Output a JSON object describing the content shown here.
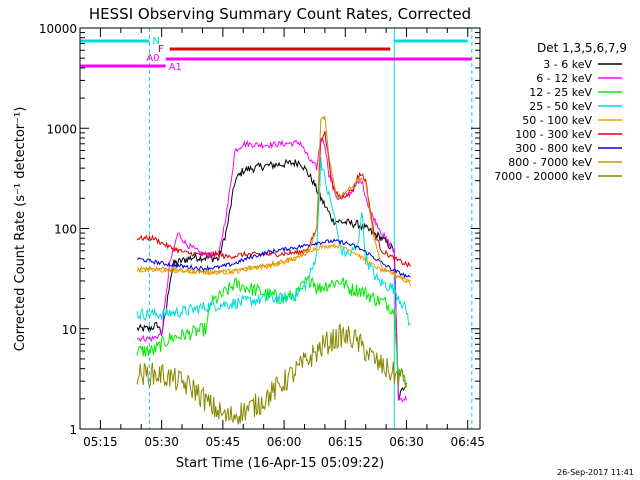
{
  "chart_data": {
    "type": "line",
    "title": "HESSI Observing Summary Count Rates, Corrected",
    "xlabel": "Start Time (16-Apr-15 05:09:22)",
    "ylabel": "Corrected Count Rate (s⁻¹ detector⁻¹)",
    "yscale": "log",
    "ylim": [
      1,
      10000
    ],
    "xlim": [
      "05:10",
      "06:48"
    ],
    "x_ticks": [
      "05:15",
      "05:30",
      "05:45",
      "06:00",
      "06:15",
      "06:30",
      "06:45"
    ],
    "y_ticks": [
      "1",
      "10",
      "100",
      "1000",
      "10000"
    ],
    "legend_title": "Det 1,3,5,6,7,9",
    "legend_position": "right",
    "timestamp": "26-Sep-2017 11:41",
    "bars": [
      {
        "label": "N",
        "color": "#00dddd",
        "segments": [
          [
            "05:10",
            "05:27"
          ],
          [
            "06:27",
            "06:45"
          ]
        ]
      },
      {
        "label": "F",
        "color": "#dd0000",
        "segments": [
          [
            "05:32",
            "06:26"
          ]
        ]
      },
      {
        "label": "A0",
        "color": "#ff00ff",
        "segments": [
          [
            "05:31",
            "06:46"
          ]
        ]
      },
      {
        "label": "A1",
        "color": "#ff00ff",
        "segments": [
          [
            "05:10",
            "05:31"
          ]
        ]
      }
    ],
    "vertical_lines": [
      {
        "time": "05:10",
        "style": "solid",
        "color": "#00dddd"
      },
      {
        "time": "05:27",
        "style": "dashed",
        "color": "#00dddd"
      },
      {
        "time": "06:27",
        "style": "solid",
        "color": "#00dddd"
      },
      {
        "time": "06:46",
        "style": "dashed",
        "color": "#00dddd"
      }
    ],
    "series": [
      {
        "name": "3 - 6 keV",
        "color": "#000000",
        "noise": 0.04,
        "points": [
          [
            "05:24",
            10
          ],
          [
            "05:27",
            10
          ],
          [
            "05:29",
            11
          ],
          [
            "05:30",
            9
          ],
          [
            "05:31",
            14
          ],
          [
            "05:32",
            30
          ],
          [
            "05:33",
            45
          ],
          [
            "05:38",
            52
          ],
          [
            "05:44",
            50
          ],
          [
            "05:46",
            100
          ],
          [
            "05:48",
            300
          ],
          [
            "05:50",
            380
          ],
          [
            "05:55",
            420
          ],
          [
            "06:00",
            440
          ],
          [
            "06:04",
            460
          ],
          [
            "06:07",
            300
          ],
          [
            "06:09",
            200
          ],
          [
            "06:10",
            170
          ],
          [
            "06:12",
            120
          ],
          [
            "06:15",
            115
          ],
          [
            "06:18",
            110
          ],
          [
            "06:20",
            100
          ],
          [
            "06:24",
            80
          ],
          [
            "06:27",
            60
          ],
          [
            "06:28",
            2
          ],
          [
            "06:30",
            3
          ]
        ]
      },
      {
        "name": "6 - 12 keV",
        "color": "#ff00ff",
        "noise": 0.03,
        "points": [
          [
            "05:24",
            8
          ],
          [
            "05:28",
            8
          ],
          [
            "05:30",
            9
          ],
          [
            "05:31",
            20
          ],
          [
            "05:32",
            45
          ],
          [
            "05:34",
            90
          ],
          [
            "05:36",
            70
          ],
          [
            "05:40",
            55
          ],
          [
            "05:44",
            55
          ],
          [
            "05:46",
            150
          ],
          [
            "05:48",
            600
          ],
          [
            "05:50",
            700
          ],
          [
            "05:55",
            680
          ],
          [
            "06:00",
            700
          ],
          [
            "06:04",
            720
          ],
          [
            "06:06",
            500
          ],
          [
            "06:08",
            400
          ],
          [
            "06:09",
            800
          ],
          [
            "06:10",
            700
          ],
          [
            "06:11",
            350
          ],
          [
            "06:13",
            200
          ],
          [
            "06:16",
            220
          ],
          [
            "06:18",
            280
          ],
          [
            "06:19",
            300
          ],
          [
            "06:21",
            150
          ],
          [
            "06:24",
            90
          ],
          [
            "06:27",
            60
          ],
          [
            "06:28",
            2
          ],
          [
            "06:30",
            2
          ]
        ]
      },
      {
        "name": "12 - 25 keV",
        "color": "#00ee00",
        "noise": 0.07,
        "points": [
          [
            "05:24",
            6
          ],
          [
            "05:28",
            6
          ],
          [
            "05:30",
            7
          ],
          [
            "05:32",
            8
          ],
          [
            "05:37",
            9
          ],
          [
            "05:41",
            10
          ],
          [
            "05:42",
            18
          ],
          [
            "05:45",
            22
          ],
          [
            "05:48",
            28
          ],
          [
            "05:52",
            25
          ],
          [
            "05:56",
            22
          ],
          [
            "06:00",
            20
          ],
          [
            "06:03",
            22
          ],
          [
            "06:05",
            28
          ],
          [
            "06:07",
            32
          ],
          [
            "06:08",
            25
          ],
          [
            "06:11",
            28
          ],
          [
            "06:14",
            30
          ],
          [
            "06:16",
            25
          ],
          [
            "06:19",
            24
          ],
          [
            "06:22",
            20
          ],
          [
            "06:25",
            18
          ],
          [
            "06:27",
            15
          ],
          [
            "06:28",
            4
          ],
          [
            "06:30",
            3
          ]
        ]
      },
      {
        "name": "25 - 50 keV",
        "color": "#00dddd",
        "noise": 0.06,
        "points": [
          [
            "05:24",
            14
          ],
          [
            "05:30",
            14
          ],
          [
            "05:36",
            15
          ],
          [
            "05:42",
            17
          ],
          [
            "05:48",
            18
          ],
          [
            "05:52",
            19
          ],
          [
            "05:56",
            20
          ],
          [
            "06:00",
            20
          ],
          [
            "06:03",
            22
          ],
          [
            "06:05",
            26
          ],
          [
            "06:07",
            40
          ],
          [
            "06:08",
            60
          ],
          [
            "06:09",
            500
          ],
          [
            "06:10",
            300
          ],
          [
            "06:12",
            150
          ],
          [
            "06:14",
            60
          ],
          [
            "06:16",
            55
          ],
          [
            "06:18",
            65
          ],
          [
            "06:19",
            150
          ],
          [
            "06:20",
            50
          ],
          [
            "06:23",
            30
          ],
          [
            "06:27",
            25
          ],
          [
            "06:30",
            15
          ],
          [
            "06:31",
            10
          ]
        ]
      },
      {
        "name": "50 - 100 keV",
        "color": "#ff9900",
        "noise": 0.02,
        "points": [
          [
            "05:24",
            38
          ],
          [
            "05:30",
            38
          ],
          [
            "05:36",
            37
          ],
          [
            "05:42",
            36
          ],
          [
            "05:48",
            37
          ],
          [
            "05:52",
            40
          ],
          [
            "05:56",
            42
          ],
          [
            "06:00",
            45
          ],
          [
            "06:03",
            50
          ],
          [
            "06:06",
            60
          ],
          [
            "06:09",
            65
          ],
          [
            "06:12",
            68
          ],
          [
            "06:15",
            65
          ],
          [
            "06:18",
            55
          ],
          [
            "06:21",
            45
          ],
          [
            "06:24",
            38
          ],
          [
            "06:27",
            35
          ],
          [
            "06:31",
            30
          ]
        ]
      },
      {
        "name": "100 - 300 keV",
        "color": "#dd0000",
        "noise": 0.025,
        "points": [
          [
            "05:24",
            80
          ],
          [
            "05:28",
            80
          ],
          [
            "05:30",
            72
          ],
          [
            "05:32",
            65
          ],
          [
            "05:36",
            57
          ],
          [
            "05:40",
            55
          ],
          [
            "05:44",
            55
          ],
          [
            "05:46",
            52
          ],
          [
            "05:50",
            55
          ],
          [
            "05:55",
            55
          ],
          [
            "06:00",
            56
          ],
          [
            "06:04",
            58
          ],
          [
            "06:06",
            65
          ],
          [
            "06:08",
            100
          ],
          [
            "06:09",
            800
          ],
          [
            "06:10",
            900
          ],
          [
            "06:12",
            250
          ],
          [
            "06:14",
            200
          ],
          [
            "06:17",
            250
          ],
          [
            "06:18",
            330
          ],
          [
            "06:19",
            350
          ],
          [
            "06:20",
            300
          ],
          [
            "06:22",
            90
          ],
          [
            "06:24",
            60
          ],
          [
            "06:27",
            50
          ],
          [
            "06:31",
            42
          ]
        ]
      },
      {
        "name": "300 - 800 keV",
        "color": "#0000dd",
        "noise": 0.02,
        "points": [
          [
            "05:24",
            50
          ],
          [
            "05:30",
            45
          ],
          [
            "05:35",
            42
          ],
          [
            "05:40",
            40
          ],
          [
            "05:44",
            41
          ],
          [
            "05:48",
            45
          ],
          [
            "05:52",
            52
          ],
          [
            "05:56",
            58
          ],
          [
            "06:00",
            62
          ],
          [
            "06:04",
            66
          ],
          [
            "06:08",
            72
          ],
          [
            "06:12",
            75
          ],
          [
            "06:15",
            72
          ],
          [
            "06:18",
            65
          ],
          [
            "06:21",
            55
          ],
          [
            "06:24",
            45
          ],
          [
            "06:27",
            38
          ],
          [
            "06:31",
            32
          ]
        ]
      },
      {
        "name": "800 - 7000 keV",
        "color": "#cc9900",
        "noise": 0.02,
        "points": [
          [
            "05:24",
            40
          ],
          [
            "05:30",
            40
          ],
          [
            "05:36",
            38
          ],
          [
            "05:42",
            37
          ],
          [
            "05:48",
            38
          ],
          [
            "05:52",
            41
          ],
          [
            "05:56",
            44
          ],
          [
            "06:00",
            48
          ],
          [
            "06:03",
            52
          ],
          [
            "06:06",
            58
          ],
          [
            "06:08",
            100
          ],
          [
            "06:09",
            1200
          ],
          [
            "06:10",
            1300
          ],
          [
            "06:11",
            500
          ],
          [
            "06:13",
            200
          ],
          [
            "06:16",
            250
          ],
          [
            "06:18",
            300
          ],
          [
            "06:19",
            320
          ],
          [
            "06:20",
            280
          ],
          [
            "06:22",
            80
          ],
          [
            "06:24",
            40
          ],
          [
            "06:27",
            35
          ],
          [
            "06:31",
            28
          ]
        ]
      },
      {
        "name": "7000 - 20000 keV",
        "color": "#888800",
        "noise": 0.12,
        "points": [
          [
            "05:24",
            3.5
          ],
          [
            "05:30",
            3.5
          ],
          [
            "05:34",
            3.0
          ],
          [
            "05:38",
            2.5
          ],
          [
            "05:42",
            1.7
          ],
          [
            "05:46",
            1.3
          ],
          [
            "05:50",
            1.5
          ],
          [
            "05:54",
            1.8
          ],
          [
            "05:58",
            2.5
          ],
          [
            "06:02",
            3.5
          ],
          [
            "06:06",
            5
          ],
          [
            "06:10",
            7
          ],
          [
            "06:14",
            8.5
          ],
          [
            "06:17",
            8
          ],
          [
            "06:20",
            6
          ],
          [
            "06:23",
            4.5
          ],
          [
            "06:27",
            3.5
          ],
          [
            "06:30",
            3
          ]
        ]
      }
    ]
  }
}
